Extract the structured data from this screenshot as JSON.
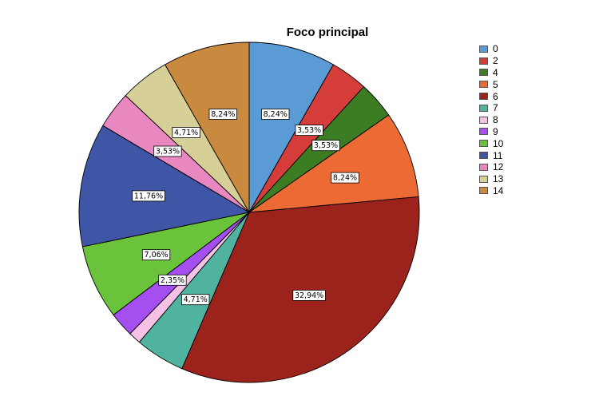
{
  "chart_data": {
    "type": "pie",
    "title": "Foco principal",
    "slices": [
      {
        "label": "0",
        "value": 8.24,
        "display": "8,24%",
        "color": "#5b9bd5"
      },
      {
        "label": "2",
        "value": 3.53,
        "display": "3,53%",
        "color": "#d43d3a"
      },
      {
        "label": "4",
        "value": 3.53,
        "display": "3,53%",
        "color": "#3c7d24"
      },
      {
        "label": "5",
        "value": 8.24,
        "display": "8,24%",
        "color": "#ec6a33"
      },
      {
        "label": "6",
        "value": 32.94,
        "display": "32,94%",
        "color": "#9b231c"
      },
      {
        "label": "7",
        "value": 4.71,
        "display": "4,71%",
        "color": "#4fb3a0"
      },
      {
        "label": "8",
        "value": 1.18,
        "display": "",
        "color": "#f5c2e6"
      },
      {
        "label": "9",
        "value": 2.35,
        "display": "2,35%",
        "color": "#a64ff0"
      },
      {
        "label": "10",
        "value": 7.06,
        "display": "7,06%",
        "color": "#6ac33b"
      },
      {
        "label": "11",
        "value": 11.76,
        "display": "11,76%",
        "color": "#3f56a6"
      },
      {
        "label": "12",
        "value": 3.53,
        "display": "3,53%",
        "color": "#e988c0"
      },
      {
        "label": "13",
        "value": 4.71,
        "display": "4,71%",
        "color": "#d6cf98"
      },
      {
        "label": "14",
        "value": 8.24,
        "display": "8,24%",
        "color": "#c98a3f"
      }
    ],
    "legend_position": "right"
  }
}
